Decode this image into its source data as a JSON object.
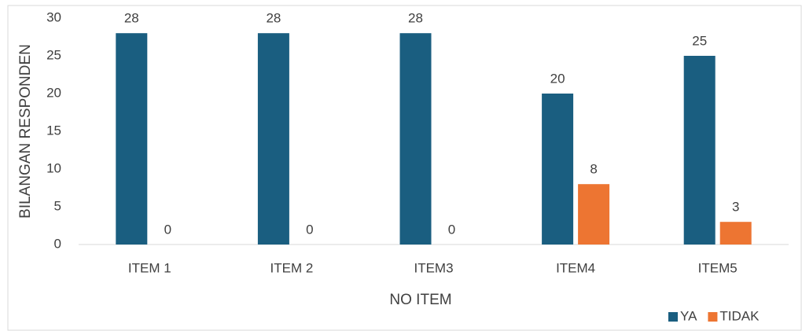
{
  "chart_data": {
    "type": "bar",
    "x_label": "NO ITEM",
    "y_label": "BILANGAN RESPONDEN",
    "categories": [
      "ITEM 1",
      "ITEM 2",
      "ITEM3",
      "ITEM4",
      "ITEM5"
    ],
    "series": [
      {
        "name": "YA",
        "color": "#1a5e80",
        "values": [
          28,
          28,
          28,
          20,
          25
        ]
      },
      {
        "name": "TIDAK",
        "color": "#ed7532",
        "values": [
          0,
          0,
          0,
          8,
          3
        ]
      }
    ],
    "ylim": [
      0,
      30
    ],
    "yticks": [
      0,
      5,
      10,
      15,
      20,
      25,
      30
    ],
    "grid": false,
    "legend": "bottom-right"
  }
}
